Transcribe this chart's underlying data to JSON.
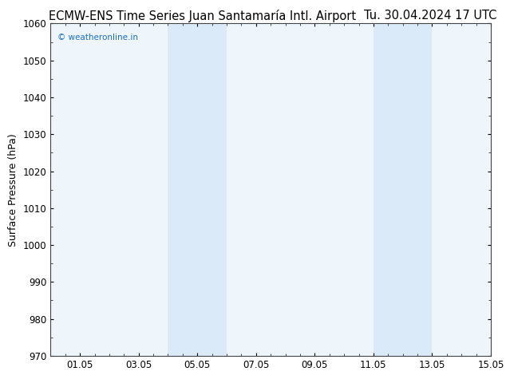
{
  "title_left": "ECMW-ENS Time Series Juan Santamaría Intl. Airport",
  "title_right": "Tu. 30.04.2024 17 UTC",
  "ylabel": "Surface Pressure (hPa)",
  "watermark": "© weatheronline.in",
  "watermark_color": "#1a6ec7",
  "ylim": [
    970,
    1060
  ],
  "yticks": [
    970,
    980,
    990,
    1000,
    1010,
    1020,
    1030,
    1040,
    1050,
    1060
  ],
  "xlim_start": 0,
  "xlim_end": 15,
  "xtick_positions": [
    1,
    3,
    5,
    7,
    9,
    11,
    13,
    15
  ],
  "xtick_labels": [
    "01.05",
    "03.05",
    "05.05",
    "07.05",
    "09.05",
    "11.05",
    "13.05",
    "15.05"
  ],
  "shaded_bands": [
    {
      "x_start": 4.0,
      "x_end": 5.0
    },
    {
      "x_start": 5.0,
      "x_end": 6.0
    },
    {
      "x_start": 11.0,
      "x_end": 12.0
    },
    {
      "x_start": 12.0,
      "x_end": 13.0
    }
  ],
  "band_color": "#daeaf8",
  "background_color": "#ffffff",
  "plot_bg_color": "#eef5fb",
  "spine_color": "#444444",
  "title_fontsize": 10.5,
  "tick_fontsize": 8.5,
  "ylabel_fontsize": 9
}
